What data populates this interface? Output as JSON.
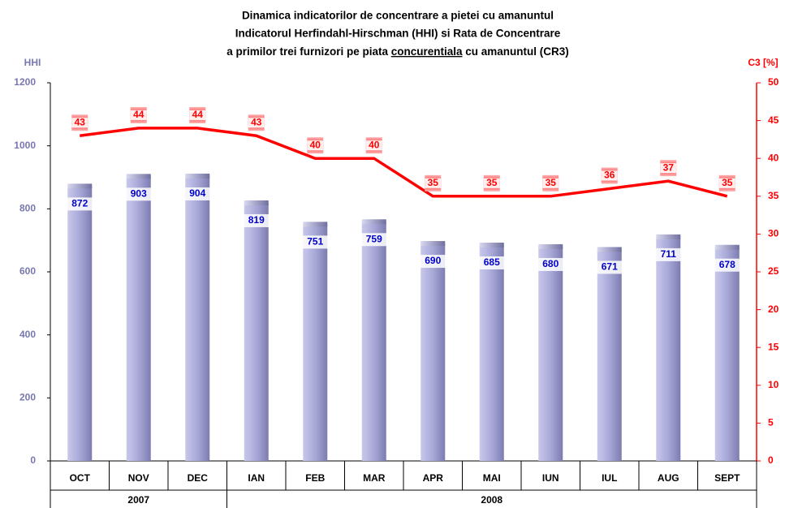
{
  "chart_data": {
    "type": "bar+line",
    "title": [
      "Dinamica indicatorilor de concentrare a pietei cu amanuntul",
      "Indicatorul Herfindahl-Hirschman (HHI) si Rata de Concentrare"
    ],
    "title_line3": {
      "parts": [
        "a primilor trei furnizori pe piata ",
        "concurentiala",
        " cu amanuntul (CR3)"
      ],
      "underlined_part": 1
    },
    "y_label": "HHI",
    "y2_label": "C3 [%]",
    "categories": [
      "OCT",
      "NOV",
      "DEC",
      "IAN",
      "FEB",
      "MAR",
      "APR",
      "MAI",
      "IUN",
      "IUL",
      "AUG",
      "SEPT"
    ],
    "groups": [
      {
        "label": "2007",
        "span": 3
      },
      {
        "label": "2008",
        "span": 9
      }
    ],
    "ylim": [
      0,
      1200
    ],
    "yticks": [
      0,
      200,
      400,
      600,
      800,
      1000,
      1200
    ],
    "y2lim": [
      0,
      50
    ],
    "y2ticks": [
      0,
      5,
      10,
      15,
      20,
      25,
      30,
      35,
      40,
      45,
      50
    ],
    "series": [
      {
        "name": "HHI",
        "type": "bar",
        "color": "#9c9cd0",
        "values": [
          872,
          903,
          904,
          819,
          751,
          759,
          690,
          685,
          680,
          671,
          711,
          678
        ]
      },
      {
        "name": "CR3",
        "type": "line",
        "axis": "y2",
        "color": "#ff0000",
        "values": [
          43,
          44,
          44,
          43,
          40,
          40,
          35,
          35,
          35,
          36,
          37,
          35
        ]
      }
    ]
  }
}
